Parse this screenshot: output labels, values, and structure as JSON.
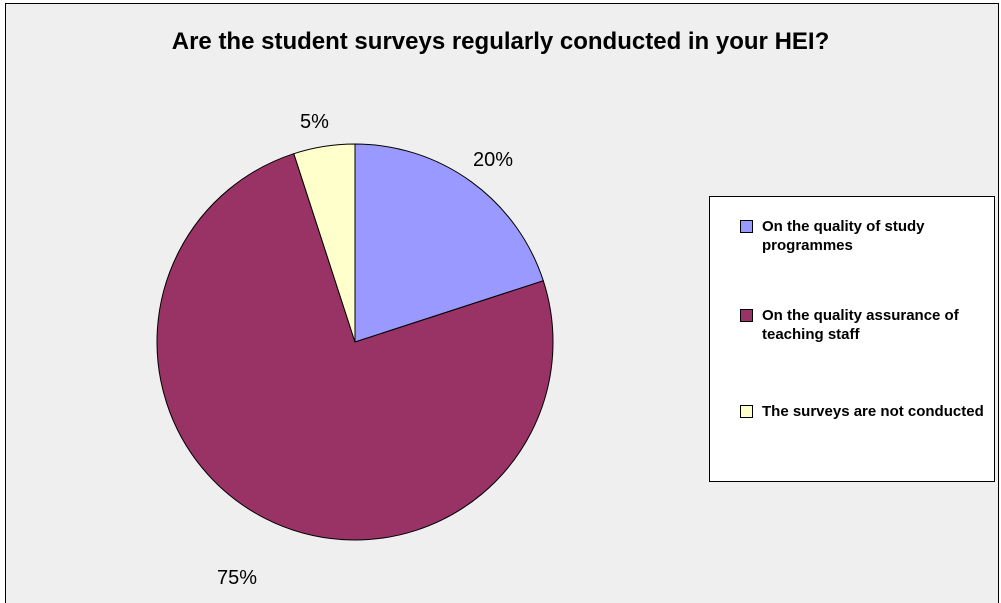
{
  "chart_data": {
    "type": "pie",
    "title": "Are the student surveys regularly conducted in your HEI?",
    "slices": [
      {
        "name": "On the quality of study programmes",
        "value": 20,
        "label": "20%",
        "color": "#9999ff"
      },
      {
        "name": "On the quality assurance of teaching staff",
        "value": 75,
        "label": "75%",
        "color": "#993366"
      },
      {
        "name": "The surveys are not conducted",
        "value": 5,
        "label": "5%",
        "color": "#ffffcc"
      }
    ],
    "legend_position": "right"
  },
  "colors": {
    "background": "#efefef",
    "legend_background": "#ffffff",
    "outline": "#000000"
  }
}
